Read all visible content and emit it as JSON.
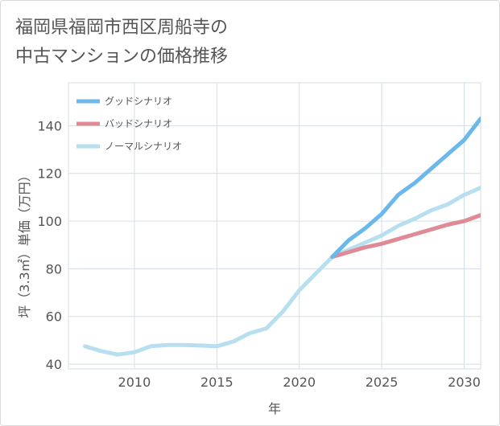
{
  "title_lines": [
    "福岡県福岡市西区周船寺の",
    "中古マンションの価格推移"
  ],
  "chart_data": {
    "type": "line",
    "xlabel": "年",
    "ylabel": "坪（3.3㎡）単価（万円）",
    "xlim": [
      2006,
      2031
    ],
    "ylim": [
      38,
      158
    ],
    "x_ticks": [
      2010,
      2015,
      2020,
      2025,
      2030
    ],
    "y_ticks": [
      40,
      60,
      80,
      100,
      120,
      140
    ],
    "grid": true,
    "legend_position": "top-left",
    "series": [
      {
        "name": "グッドシナリオ",
        "color": "#6cb8ea",
        "x": [
          2022,
          2023,
          2024,
          2025,
          2026,
          2027,
          2028,
          2029,
          2030,
          2031
        ],
        "y": [
          85,
          92,
          97,
          103,
          111,
          116,
          122,
          128,
          134,
          143
        ]
      },
      {
        "name": "バッドシナリオ",
        "color": "#df8a95",
        "x": [
          2022,
          2023,
          2024,
          2025,
          2026,
          2027,
          2028,
          2029,
          2030,
          2031
        ],
        "y": [
          85,
          87,
          89,
          90.5,
          92.5,
          94.5,
          96.5,
          98.5,
          100,
          102.5
        ]
      },
      {
        "name": "ノーマルシナリオ",
        "color": "#b7dff0",
        "x": [
          2007,
          2008,
          2009,
          2010,
          2011,
          2012,
          2013,
          2014,
          2015,
          2016,
          2017,
          2018,
          2019,
          2020,
          2021,
          2022,
          2023,
          2024,
          2025,
          2026,
          2027,
          2028,
          2029,
          2030,
          2031
        ],
        "y": [
          47.5,
          45.5,
          44,
          45,
          47.5,
          48,
          48,
          47.8,
          47.5,
          49.5,
          53,
          55,
          62,
          71,
          78,
          85,
          88,
          91,
          94,
          98,
          101,
          104.5,
          107,
          111,
          114
        ]
      }
    ]
  }
}
